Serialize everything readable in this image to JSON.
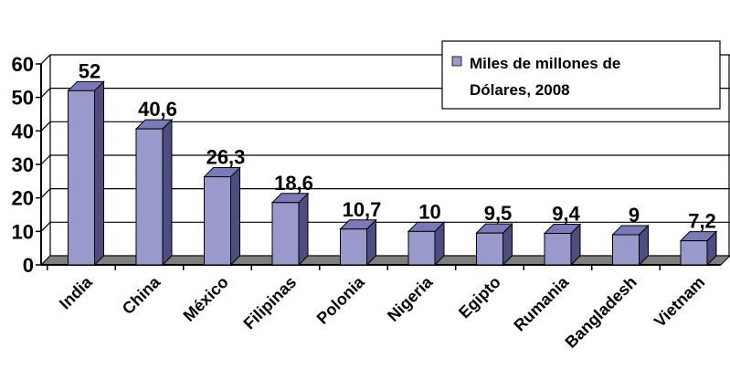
{
  "chart_data": {
    "type": "bar",
    "title": "",
    "xlabel": "",
    "ylabel": "",
    "ylim": [
      0,
      60
    ],
    "yticks": [
      0,
      10,
      20,
      30,
      40,
      50,
      60
    ],
    "grid": true,
    "style": "3d-columns",
    "legend_position": "top-right",
    "categories": [
      "India",
      "China",
      "México",
      "Filipinas",
      "Polonia",
      "Nigeria",
      "Egipto",
      "Rumania",
      "Bangladesh",
      "Vietnam"
    ],
    "series": [
      {
        "name": "Miles de millones de Dólares, 2008",
        "legend_lines": [
          "Miles de millones de",
          "Dólares, 2008"
        ],
        "values": [
          52,
          40.6,
          26.3,
          18.6,
          10.7,
          10,
          9.5,
          9.4,
          9,
          7.2
        ],
        "labels": [
          "52",
          "40,6",
          "26,3",
          "18,6",
          "10,7",
          "10",
          "9,5",
          "9,4",
          "9",
          "7,2"
        ]
      }
    ],
    "colors": {
      "bar_front": "#9999cc",
      "bar_side": "#4d4d80",
      "bar_top": "#7a7ab8",
      "floor": "#7f7f7f",
      "background": "#ffffff",
      "grid": "#000000"
    }
  }
}
